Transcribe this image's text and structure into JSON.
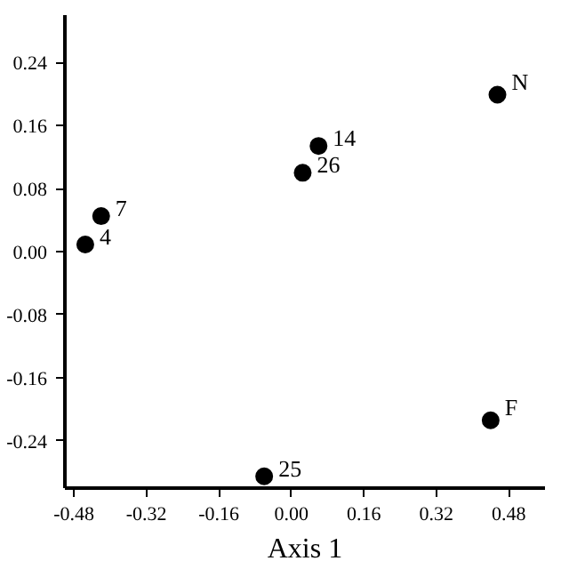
{
  "chart_data": {
    "type": "scatter",
    "xlabel": "Axis 1",
    "x": [
      -0.455,
      -0.42,
      0.025,
      0.06,
      0.455,
      0.44,
      -0.06
    ],
    "values": [
      0.009,
      0.045,
      0.1,
      0.134,
      0.199,
      -0.214,
      -0.285
    ],
    "color": "#000000",
    "marker": "circle",
    "grid": false,
    "xlim": [
      -0.5,
      0.56
    ],
    "ylim": [
      -0.3,
      0.3
    ],
    "xticks": [
      -0.48,
      -0.32,
      -0.16,
      {
        "value": 0,
        "label": "0.00"
      },
      0.16,
      0.32,
      0.48
    ],
    "yticks": [
      -0.24,
      -0.16,
      -0.08,
      {
        "value": 0,
        "label": "0.00"
      },
      0.08,
      0.16,
      0.24
    ],
    "annotations": [
      {
        "text": "4",
        "x": -0.455,
        "y": 0.009
      },
      {
        "text": "7",
        "x": -0.42,
        "y": 0.045
      },
      {
        "text": "26",
        "x": 0.025,
        "y": 0.1
      },
      {
        "text": "14",
        "x": 0.06,
        "y": 0.134
      },
      {
        "text": "N",
        "x": 0.455,
        "y": 0.199
      },
      {
        "text": "F",
        "x": 0.44,
        "y": -0.214
      },
      {
        "text": "25",
        "x": -0.06,
        "y": -0.285
      }
    ]
  }
}
